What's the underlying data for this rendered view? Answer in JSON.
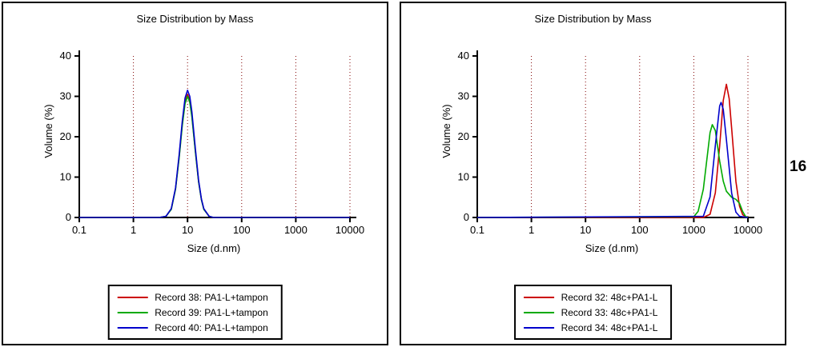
{
  "page": {
    "figure_number": "16"
  },
  "chart_data": [
    {
      "type": "line",
      "title": "Size Distribution by Mass",
      "xlabel": "Size (d.nm)",
      "ylabel": "Volume (%)",
      "xscale": "log",
      "xlim": [
        0.1,
        10000
      ],
      "xticks": [
        0.1,
        1,
        10,
        100,
        1000,
        10000
      ],
      "ylim": [
        0,
        40
      ],
      "yticks": [
        0,
        10,
        20,
        30,
        40
      ],
      "grid": {
        "vertical": true,
        "style": "dotted",
        "color": "#800000"
      },
      "axis_color": "#000000",
      "legend_position": "bottom",
      "series": [
        {
          "name": "Record 38: PA1-L+tampon",
          "color": "#cc0000",
          "points": [
            [
              0.1,
              0
            ],
            [
              3,
              0
            ],
            [
              4,
              0.3
            ],
            [
              5,
              2.1
            ],
            [
              6,
              7.1
            ],
            [
              7,
              15.0
            ],
            [
              8,
              23.1
            ],
            [
              9,
              28.6
            ],
            [
              10,
              30.5
            ],
            [
              11,
              29.0
            ],
            [
              12,
              25.3
            ],
            [
              14,
              16.2
            ],
            [
              16,
              8.9
            ],
            [
              18,
              4.5
            ],
            [
              20,
              2.1
            ],
            [
              25,
              0.3
            ],
            [
              30,
              0
            ],
            [
              10000,
              0
            ]
          ]
        },
        {
          "name": "Record 39: PA1-L+tampon",
          "color": "#00aa00",
          "points": [
            [
              0.1,
              0
            ],
            [
              3,
              0
            ],
            [
              4,
              0.3
            ],
            [
              5,
              2.0
            ],
            [
              6,
              7.0
            ],
            [
              7,
              14.7
            ],
            [
              8,
              22.7
            ],
            [
              9,
              28.2
            ],
            [
              10,
              30.0
            ],
            [
              11,
              28.5
            ],
            [
              12,
              24.9
            ],
            [
              14,
              16.0
            ],
            [
              16,
              8.8
            ],
            [
              18,
              4.4
            ],
            [
              20,
              2.0
            ],
            [
              25,
              0.3
            ],
            [
              30,
              0
            ],
            [
              10000,
              0
            ]
          ]
        },
        {
          "name": "Record 40: PA1-L+tampon",
          "color": "#0000cc",
          "points": [
            [
              0.1,
              0
            ],
            [
              3,
              0
            ],
            [
              4,
              0.3
            ],
            [
              5,
              2.2
            ],
            [
              6,
              7.3
            ],
            [
              7,
              15.5
            ],
            [
              8,
              23.8
            ],
            [
              9,
              29.6
            ],
            [
              10,
              31.5
            ],
            [
              11,
              30.0
            ],
            [
              12,
              26.2
            ],
            [
              14,
              16.8
            ],
            [
              16,
              9.2
            ],
            [
              18,
              4.6
            ],
            [
              20,
              2.2
            ],
            [
              25,
              0.3
            ],
            [
              30,
              0
            ],
            [
              10000,
              0
            ]
          ]
        }
      ]
    },
    {
      "type": "line",
      "title": "Size Distribution by Mass",
      "xlabel": "Size (d.nm)",
      "ylabel": "Volume (%)",
      "xscale": "log",
      "xlim": [
        0.1,
        10000
      ],
      "xticks": [
        0.1,
        1,
        10,
        100,
        1000,
        10000
      ],
      "ylim": [
        0,
        40
      ],
      "yticks": [
        0,
        10,
        20,
        30,
        40
      ],
      "grid": {
        "vertical": true,
        "style": "dotted",
        "color": "#800000"
      },
      "axis_color": "#000000",
      "legend_position": "bottom",
      "series": [
        {
          "name": "Record 32: 48c+PA1-L",
          "color": "#cc0000",
          "points": [
            [
              0.1,
              0
            ],
            [
              1500,
              0
            ],
            [
              2000,
              0.8
            ],
            [
              2500,
              6.1
            ],
            [
              3000,
              17.7
            ],
            [
              3500,
              29.0
            ],
            [
              4000,
              33.0
            ],
            [
              4500,
              29.4
            ],
            [
              5000,
              22.0
            ],
            [
              6000,
              8.9
            ],
            [
              7000,
              2.8
            ],
            [
              8000,
              0.7
            ],
            [
              9000,
              0.2
            ],
            [
              10000,
              0
            ]
          ]
        },
        {
          "name": "Record 33: 48c+PA1-L",
          "color": "#00aa00",
          "points": [
            [
              0.1,
              0
            ],
            [
              1000,
              0.2
            ],
            [
              1200,
              1.5
            ],
            [
              1500,
              7.0
            ],
            [
              1800,
              16.0
            ],
            [
              2000,
              21.0
            ],
            [
              2200,
              23.0
            ],
            [
              2500,
              21.5
            ],
            [
              3000,
              14.0
            ],
            [
              3500,
              9.0
            ],
            [
              4000,
              6.5
            ],
            [
              5000,
              5.0
            ],
            [
              6000,
              4.5
            ],
            [
              7000,
              3.5
            ],
            [
              8000,
              1.5
            ],
            [
              9000,
              0.3
            ],
            [
              10000,
              0
            ]
          ]
        },
        {
          "name": "Record 34: 48c+PA1-L",
          "color": "#0000cc",
          "points": [
            [
              0.1,
              0
            ],
            [
              1500,
              0.3
            ],
            [
              2000,
              5.1
            ],
            [
              2500,
              17.8
            ],
            [
              3000,
              27.6
            ],
            [
              3200,
              28.5
            ],
            [
              3500,
              26.8
            ],
            [
              4000,
              19.3
            ],
            [
              5000,
              6.0
            ],
            [
              6000,
              1.3
            ],
            [
              7000,
              0.3
            ],
            [
              10000,
              0
            ]
          ]
        }
      ]
    }
  ]
}
